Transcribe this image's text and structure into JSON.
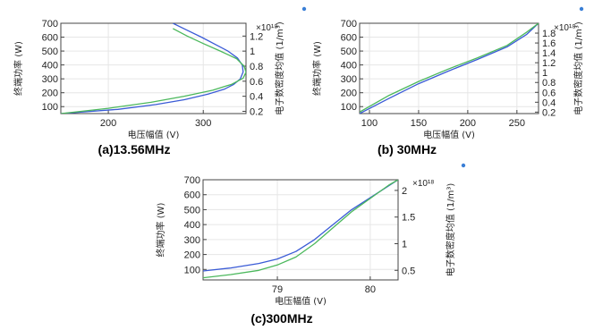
{
  "colors": {
    "power": "#3a5bd6",
    "density": "#4bb85c",
    "grid": "#e6e6e6",
    "frame": "#444444",
    "marker": "#3a7fd6"
  },
  "chart_data": [
    {
      "type": "line",
      "caption": "(a)13.56MHz",
      "xlabel": "电压幅值 (V)",
      "ylabel": "终端功率 (W)",
      "y2label": "电子数密度均值 (1/m³)",
      "y2multiplier": "×10¹⁸",
      "xlim": [
        150,
        345
      ],
      "ylim": [
        50,
        700
      ],
      "y2lim": [
        0.17,
        1.37
      ],
      "xticks": [
        200,
        300
      ],
      "yticks": [
        100,
        200,
        300,
        400,
        500,
        600,
        700
      ],
      "y2ticks": [
        0.2,
        0.4,
        0.6,
        0.8,
        1,
        1.2
      ],
      "series": [
        {
          "axis": "y",
          "x": [
            150,
            210,
            250,
            280,
            305,
            322,
            332,
            339,
            342,
            341,
            336,
            326,
            312,
            298,
            283,
            268
          ],
          "y": [
            50,
            80,
            115,
            150,
            190,
            225,
            260,
            300,
            350,
            400,
            450,
            500,
            550,
            600,
            650,
            700
          ]
        },
        {
          "axis": "y2",
          "x": [
            150,
            200,
            245,
            280,
            310,
            330,
            342,
            345,
            343,
            335,
            318,
            300,
            283,
            268
          ],
          "y": [
            0.17,
            0.24,
            0.32,
            0.4,
            0.48,
            0.56,
            0.64,
            0.72,
            0.8,
            0.9,
            1.0,
            1.1,
            1.2,
            1.3
          ]
        }
      ]
    },
    {
      "type": "line",
      "caption": "(b) 30MHz",
      "xlabel": "电压幅值 (V)",
      "ylabel": "终端功率 (W)",
      "y2label": "电子数密度均值 (1/m³)",
      "y2multiplier": "×10¹⁸",
      "xlim": [
        90,
        272
      ],
      "ylim": [
        50,
        700
      ],
      "y2lim": [
        0.17,
        2.0
      ],
      "xticks": [
        100,
        150,
        200,
        250
      ],
      "yticks": [
        100,
        200,
        300,
        400,
        500,
        600,
        700
      ],
      "y2ticks": [
        0.2,
        0.4,
        0.6,
        0.8,
        1,
        1.2,
        1.4,
        1.6,
        1.8
      ],
      "series": [
        {
          "axis": "y",
          "x": [
            90,
            120,
            150,
            180,
            210,
            240,
            260,
            272
          ],
          "y": [
            50,
            160,
            265,
            355,
            440,
            530,
            620,
            700
          ]
        },
        {
          "axis": "y2",
          "x": [
            90,
            120,
            150,
            180,
            210,
            240,
            260,
            272
          ],
          "y": [
            0.2,
            0.54,
            0.82,
            1.07,
            1.3,
            1.55,
            1.82,
            2.0
          ]
        }
      ]
    },
    {
      "type": "line",
      "caption": "(c)300MHz",
      "xlabel": "电压幅值 (V)",
      "ylabel": "终端功率 (W)",
      "y2label": "电子数密度均值 (1/m³)",
      "y2multiplier": "×10¹⁸",
      "xlim": [
        78.2,
        80.3
      ],
      "ylim": [
        30,
        700
      ],
      "y2lim": [
        0.32,
        2.2
      ],
      "xticks": [
        79,
        80
      ],
      "yticks": [
        100,
        200,
        300,
        400,
        500,
        600,
        700
      ],
      "y2ticks": [
        0.5,
        1,
        1.5,
        2
      ],
      "series": [
        {
          "axis": "y",
          "x": [
            78.2,
            78.5,
            78.8,
            79.0,
            79.2,
            79.4,
            79.6,
            79.8,
            80.0,
            80.2,
            80.3
          ],
          "y": [
            90,
            110,
            140,
            170,
            220,
            300,
            400,
            500,
            580,
            660,
            700
          ]
        },
        {
          "axis": "y2",
          "x": [
            78.2,
            78.5,
            78.8,
            79.0,
            79.2,
            79.4,
            79.6,
            79.8,
            80.0,
            80.2,
            80.3
          ],
          "y": [
            0.36,
            0.42,
            0.5,
            0.6,
            0.75,
            1.0,
            1.3,
            1.6,
            1.85,
            2.1,
            2.2
          ]
        }
      ]
    }
  ]
}
